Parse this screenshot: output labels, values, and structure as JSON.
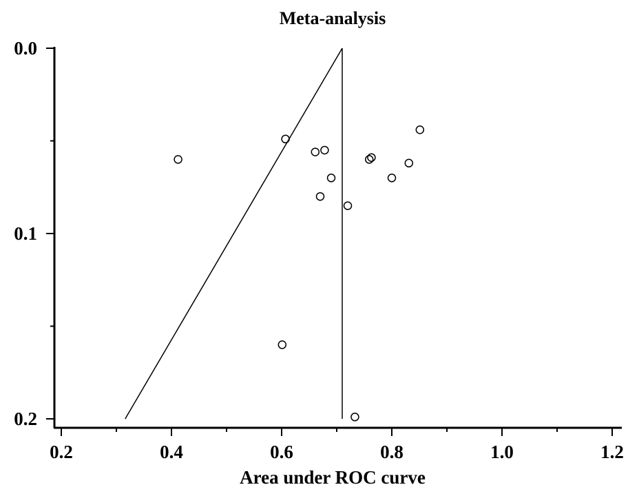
{
  "chart_data": {
    "type": "scatter",
    "title": "Meta-analysis",
    "xlabel": "Area under ROC curve",
    "ylabel": "",
    "xlim": [
      0.2,
      1.2
    ],
    "ylim": [
      0.0,
      0.2
    ],
    "y_inverted": true,
    "grid": false,
    "x_ticks": [
      0.2,
      0.4,
      0.6,
      0.8,
      1.0,
      1.2
    ],
    "x_tick_labels": [
      "0.2",
      "0.4",
      "0.6",
      "0.8",
      "1.0",
      "1.2"
    ],
    "x_minor_ticks": [
      0.3,
      0.5,
      0.7,
      0.9,
      1.1
    ],
    "y_ticks": [
      0.0,
      0.1,
      0.2
    ],
    "y_tick_labels": [
      "0.0",
      "0.1",
      "0.2"
    ],
    "y_minor_ticks": [
      0.05,
      0.15
    ],
    "points": [
      {
        "x": 0.412,
        "y": 0.06
      },
      {
        "x": 0.607,
        "y": 0.049
      },
      {
        "x": 0.661,
        "y": 0.056
      },
      {
        "x": 0.678,
        "y": 0.055
      },
      {
        "x": 0.69,
        "y": 0.07
      },
      {
        "x": 0.67,
        "y": 0.08
      },
      {
        "x": 0.72,
        "y": 0.085
      },
      {
        "x": 0.759,
        "y": 0.06
      },
      {
        "x": 0.763,
        "y": 0.059
      },
      {
        "x": 0.8,
        "y": 0.07
      },
      {
        "x": 0.831,
        "y": 0.062
      },
      {
        "x": 0.851,
        "y": 0.044
      },
      {
        "x": 0.601,
        "y": 0.16
      },
      {
        "x": 0.733,
        "y": 0.199
      }
    ],
    "reference_lines": [
      {
        "type": "vertical",
        "x": 0.71,
        "y_range": [
          0.0,
          0.2
        ]
      },
      {
        "type": "segment",
        "from": {
          "x": 0.71,
          "y": 0.0
        },
        "to": {
          "x": 0.316,
          "y": 0.2
        }
      }
    ]
  }
}
